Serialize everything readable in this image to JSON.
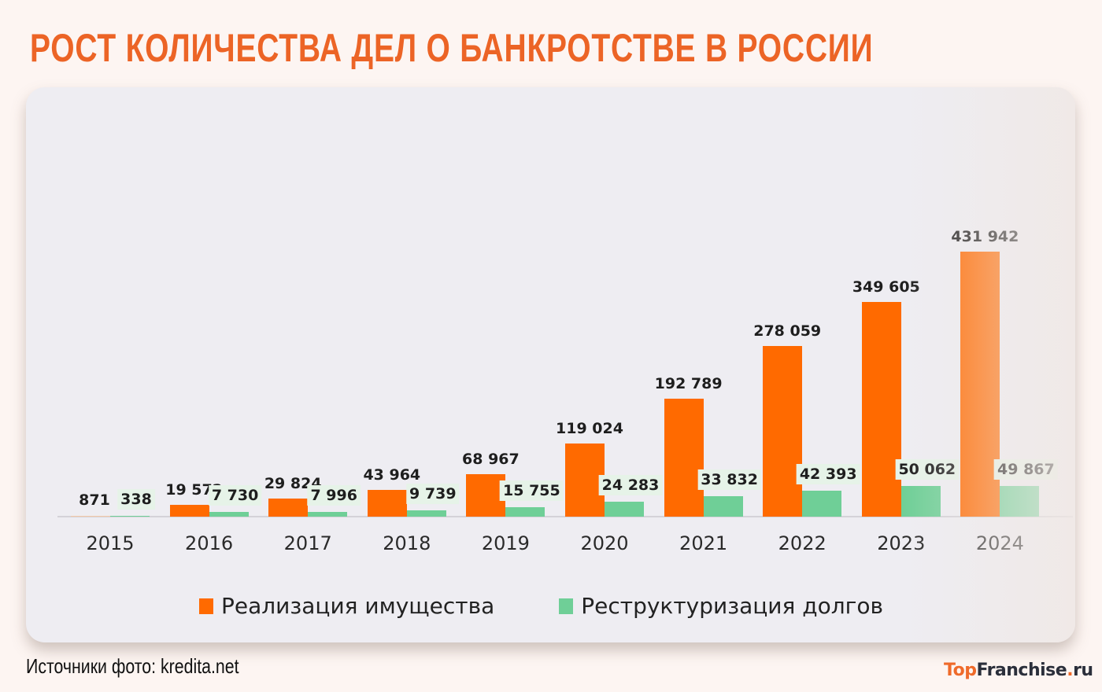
{
  "title": "РОСТ КОЛИЧЕСТВА ДЕЛ О БАНКРОТСТВЕ В РОССИИ",
  "source": "Источники фото: kredita.net",
  "brand": {
    "part1": "Top",
    "part2": "Franchise",
    "part3": ".",
    "part4": "ru"
  },
  "colors": {
    "title": "#ec6426",
    "orange": "#ff6a00",
    "green": "#6fcf97",
    "card": "#eeedf2",
    "page": "#fdf5f2"
  },
  "legend": [
    {
      "label": "Реализация имущества",
      "color": "#ff6a00"
    },
    {
      "label": "Реструктуризация долгов",
      "color": "#6fcf97"
    }
  ],
  "chart_data": {
    "type": "bar",
    "title": "РОСТ КОЛИЧЕСТВА ДЕЛ О БАНКРОТСТВЕ В РОССИИ",
    "xlabel": "",
    "ylabel": "",
    "grid": false,
    "legend_position": "bottom",
    "categories": [
      "2015",
      "2016",
      "2017",
      "2018",
      "2019",
      "2020",
      "2021",
      "2022",
      "2023",
      "2024"
    ],
    "series": [
      {
        "name": "Реализация имущества",
        "color": "#ff6a00",
        "values": [
          871,
          19572,
          29824,
          43964,
          68967,
          119024,
          192789,
          278059,
          349605,
          431942
        ],
        "labels": [
          "871",
          "19 572",
          "29 824",
          "43 964",
          "68 967",
          "119 024",
          "192 789",
          "278 059",
          "349 605",
          "431 942"
        ]
      },
      {
        "name": "Реструктуризация долгов",
        "color": "#6fcf97",
        "values": [
          338,
          7730,
          7996,
          9739,
          15755,
          24283,
          33832,
          42393,
          50062,
          49867
        ],
        "labels": [
          "338",
          "7 730",
          "7 996",
          "9 739",
          "15 755",
          "24 283",
          "33 832",
          "42 393",
          "50 062",
          "49 867"
        ]
      }
    ],
    "ylim": [
      0,
      450000
    ]
  }
}
